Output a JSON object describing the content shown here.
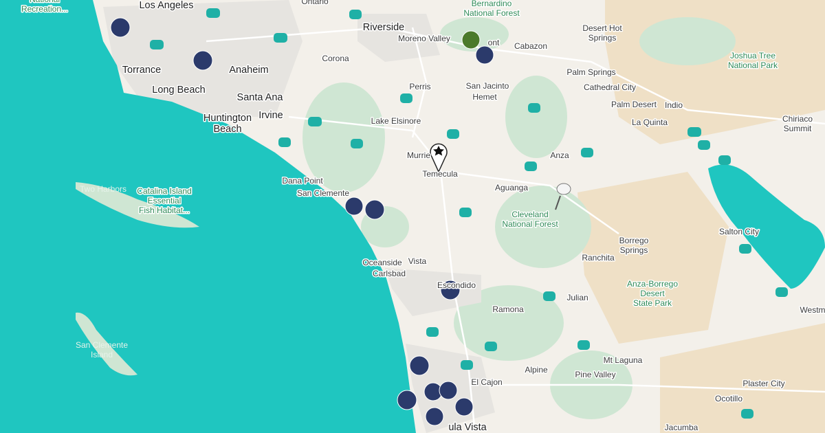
{
  "places": [
    [
      "National",
      "Recreation..."
    ],
    [
      "Los Angeles"
    ],
    [
      "Ontario"
    ],
    [
      "Bernardino",
      "National Forest"
    ],
    [
      "Riverside"
    ],
    [
      "Moreno Valley"
    ],
    [
      "ont"
    ],
    [
      "Cabazon"
    ],
    [
      "Desert Hot",
      "Springs"
    ],
    [
      "Joshua Tree",
      "National Park"
    ],
    [
      "Torrance"
    ],
    [
      "Anaheim"
    ],
    [
      "Long Beach"
    ],
    [
      "Santa Ana"
    ],
    [
      "Corona"
    ],
    [
      "Perris"
    ],
    [
      "San Jacinto"
    ],
    [
      "Hemet"
    ],
    [
      "Palm Springs"
    ],
    [
      "Cathedral City"
    ],
    [
      "Palm Desert"
    ],
    [
      "Indio"
    ],
    [
      "Huntington",
      "Beach"
    ],
    [
      "Irvine"
    ],
    [
      "Lake Elsinore"
    ],
    [
      "La Quinta"
    ],
    [
      "Chiriaco",
      "Summit"
    ],
    [
      "Murrie"
    ],
    [
      "Temecula"
    ],
    [
      "Anza"
    ],
    [
      "Dana Point"
    ],
    [
      "San Clemente"
    ],
    [
      "Two Harbors"
    ],
    [
      "Catalina Island",
      "Essential",
      "Fish Habitat..."
    ],
    [
      "Aguanga"
    ],
    [
      "Cleveland",
      "National Forest"
    ],
    [
      "Salton City"
    ],
    [
      "Borrego",
      "Springs"
    ],
    [
      "Ranchita"
    ],
    [
      "Oceanside"
    ],
    [
      "Vista"
    ],
    [
      "Carlsbad"
    ],
    [
      "Escondido"
    ],
    [
      "Anza-Borrego",
      "Desert",
      "State Park"
    ],
    [
      "Julian"
    ],
    [
      "Ramona"
    ],
    [
      "Westm"
    ],
    [
      "San Clemente",
      "Island"
    ],
    [
      "Mt Laguna"
    ],
    [
      "El Cajon"
    ],
    [
      "Alpine"
    ],
    [
      "Pine Valley"
    ],
    [
      "Plaster City"
    ],
    [
      "Ocotillo"
    ],
    [
      "Jacumba"
    ],
    [
      "ula Vista"
    ]
  ]
}
